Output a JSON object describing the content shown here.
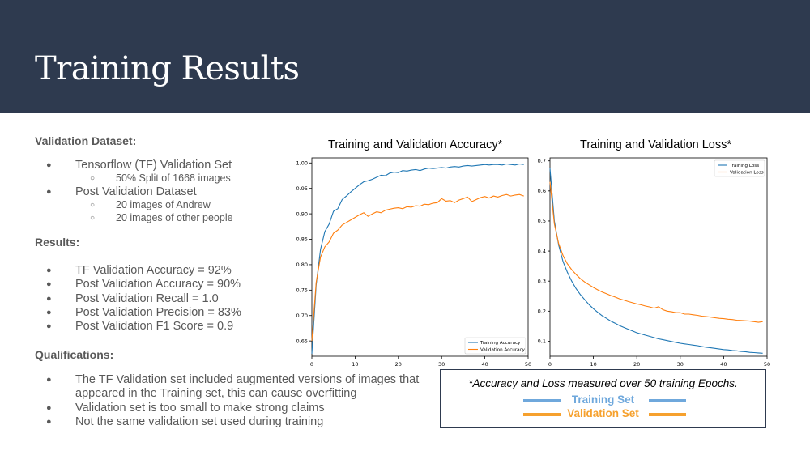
{
  "header": {
    "title": "Training Results"
  },
  "sections": {
    "validation_dataset": {
      "title": "Validation Dataset:",
      "items": [
        {
          "text": "Tensorflow (TF) Validation Set",
          "sub": [
            "50% Split of 1668 images"
          ]
        },
        {
          "text": "Post Validation Dataset",
          "sub": [
            "20 images of Andrew",
            "20 images of other people"
          ]
        }
      ]
    },
    "results": {
      "title": "Results:",
      "items": [
        "TF Validation Accuracy = 92%",
        "Post Validation Accuracy = 90%",
        "Post Validation Recall = 1.0",
        "Post Validation Precision = 83%",
        "Post Validation F1 Score = 0.9"
      ]
    },
    "qualifications": {
      "title": "Qualifications:",
      "items": [
        "The TF Validation set included augmented versions of images that appeared in the Training set, this can cause overfitting",
        "Validation set is too small to make strong claims",
        "Not the same validation set used during training"
      ]
    }
  },
  "note": {
    "text": "*Accuracy and Loss measured over 50 training Epochs.",
    "training_label": "Training Set",
    "validation_label": "Validation Set",
    "training_color": "#6fa8dc",
    "validation_color": "#f6a12e"
  },
  "chart_data": [
    {
      "type": "line",
      "title": "Training and Validation Accuracy*",
      "xlim": [
        0,
        50
      ],
      "ylim": [
        0.62,
        1.01
      ],
      "xticks": [
        "0",
        "10",
        "20",
        "30",
        "40",
        "50"
      ],
      "yticks": [
        "0.65",
        "0.70",
        "0.75",
        "0.80",
        "0.85",
        "0.90",
        "0.95",
        "1.00"
      ],
      "legend_position": "lower-right",
      "x": [
        0,
        1,
        2,
        3,
        4,
        5,
        6,
        7,
        8,
        9,
        10,
        11,
        12,
        13,
        14,
        15,
        16,
        17,
        18,
        19,
        20,
        21,
        22,
        23,
        24,
        25,
        26,
        27,
        28,
        29,
        30,
        31,
        32,
        33,
        34,
        35,
        36,
        37,
        38,
        39,
        40,
        41,
        42,
        43,
        44,
        45,
        46,
        47,
        48,
        49
      ],
      "series": [
        {
          "name": "Training Accuracy",
          "color": "#1f77b4",
          "values": [
            0.625,
            0.76,
            0.83,
            0.865,
            0.88,
            0.905,
            0.91,
            0.928,
            0.935,
            0.943,
            0.95,
            0.957,
            0.963,
            0.965,
            0.968,
            0.972,
            0.976,
            0.975,
            0.98,
            0.982,
            0.981,
            0.985,
            0.984,
            0.986,
            0.987,
            0.985,
            0.988,
            0.99,
            0.989,
            0.99,
            0.991,
            0.99,
            0.992,
            0.993,
            0.992,
            0.994,
            0.995,
            0.994,
            0.995,
            0.996,
            0.997,
            0.996,
            0.997,
            0.997,
            0.996,
            0.998,
            0.997,
            0.996,
            0.998,
            0.997
          ]
        },
        {
          "name": "Validation Accuracy",
          "color": "#ff7f0e",
          "values": [
            0.65,
            0.765,
            0.815,
            0.835,
            0.845,
            0.862,
            0.868,
            0.878,
            0.883,
            0.888,
            0.893,
            0.898,
            0.902,
            0.895,
            0.9,
            0.904,
            0.902,
            0.907,
            0.909,
            0.911,
            0.912,
            0.91,
            0.914,
            0.913,
            0.916,
            0.915,
            0.919,
            0.918,
            0.921,
            0.922,
            0.93,
            0.925,
            0.926,
            0.922,
            0.927,
            0.93,
            0.933,
            0.924,
            0.928,
            0.932,
            0.934,
            0.931,
            0.935,
            0.933,
            0.936,
            0.938,
            0.935,
            0.937,
            0.938,
            0.935
          ]
        }
      ]
    },
    {
      "type": "line",
      "title": "Training and Validation Loss*",
      "xlim": [
        0,
        50
      ],
      "ylim": [
        0.05,
        0.71
      ],
      "xticks": [
        "0",
        "10",
        "20",
        "30",
        "40",
        "50"
      ],
      "yticks": [
        "0.1",
        "0.2",
        "0.3",
        "0.4",
        "0.5",
        "0.6",
        "0.7"
      ],
      "legend_position": "top-right",
      "x": [
        0,
        1,
        2,
        3,
        4,
        5,
        6,
        7,
        8,
        9,
        10,
        11,
        12,
        13,
        14,
        15,
        16,
        17,
        18,
        19,
        20,
        21,
        22,
        23,
        24,
        25,
        26,
        27,
        28,
        29,
        30,
        31,
        32,
        33,
        34,
        35,
        36,
        37,
        38,
        39,
        40,
        41,
        42,
        43,
        44,
        45,
        46,
        47,
        48,
        49
      ],
      "series": [
        {
          "name": "Training Loss",
          "color": "#1f77b4",
          "values": [
            0.675,
            0.5,
            0.42,
            0.365,
            0.33,
            0.3,
            0.275,
            0.255,
            0.238,
            0.222,
            0.208,
            0.196,
            0.185,
            0.176,
            0.167,
            0.16,
            0.152,
            0.146,
            0.14,
            0.134,
            0.128,
            0.124,
            0.12,
            0.116,
            0.112,
            0.108,
            0.105,
            0.102,
            0.099,
            0.096,
            0.093,
            0.091,
            0.089,
            0.087,
            0.085,
            0.082,
            0.08,
            0.078,
            0.076,
            0.074,
            0.072,
            0.071,
            0.069,
            0.068,
            0.066,
            0.065,
            0.063,
            0.062,
            0.061,
            0.06
          ]
        },
        {
          "name": "Validation Loss",
          "color": "#ff7f0e",
          "values": [
            0.63,
            0.49,
            0.425,
            0.385,
            0.358,
            0.338,
            0.322,
            0.308,
            0.297,
            0.288,
            0.279,
            0.271,
            0.264,
            0.258,
            0.252,
            0.247,
            0.241,
            0.237,
            0.232,
            0.228,
            0.224,
            0.221,
            0.217,
            0.214,
            0.21,
            0.215,
            0.205,
            0.2,
            0.198,
            0.195,
            0.195,
            0.19,
            0.19,
            0.188,
            0.186,
            0.183,
            0.182,
            0.18,
            0.178,
            0.176,
            0.175,
            0.173,
            0.172,
            0.17,
            0.169,
            0.168,
            0.167,
            0.165,
            0.163,
            0.165
          ]
        }
      ]
    }
  ]
}
